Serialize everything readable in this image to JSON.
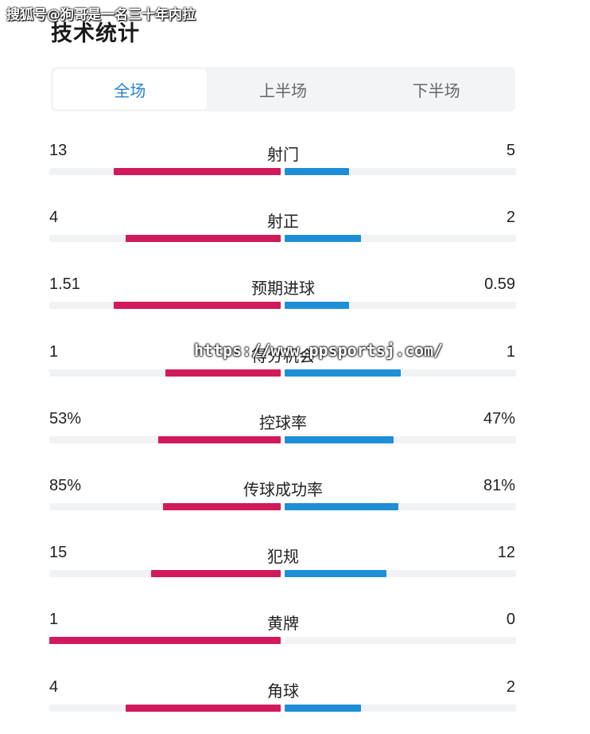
{
  "watermark_top": "搜狐号@狗哥是一名三十年内拉",
  "watermark_mid": "https://www.ppsportsj.com/",
  "title": "技术统计",
  "tabs": [
    {
      "label": "全场",
      "active": true
    },
    {
      "label": "上半场",
      "active": false
    },
    {
      "label": "下半场",
      "active": false
    }
  ],
  "colors": {
    "home": "#d11a5c",
    "away": "#1e8fd6",
    "active_tab": "#1f84cf"
  },
  "stats": [
    {
      "name": "射门",
      "home": "13",
      "away": "5",
      "home_fraction": 0.72,
      "away_fraction": 0.28
    },
    {
      "name": "射正",
      "home": "4",
      "away": "2",
      "home_fraction": 0.67,
      "away_fraction": 0.33
    },
    {
      "name": "预期进球",
      "home": "1.51",
      "away": "0.59",
      "home_fraction": 0.72,
      "away_fraction": 0.28
    },
    {
      "name": "得分机会",
      "home": "1",
      "away": "1",
      "home_fraction": 0.5,
      "away_fraction": 0.5
    },
    {
      "name": "控球率",
      "home": "53%",
      "away": "47%",
      "home_fraction": 0.53,
      "away_fraction": 0.47
    },
    {
      "name": "传球成功率",
      "home": "85%",
      "away": "81%",
      "home_fraction": 0.51,
      "away_fraction": 0.49
    },
    {
      "name": "犯规",
      "home": "15",
      "away": "12",
      "home_fraction": 0.56,
      "away_fraction": 0.44
    },
    {
      "name": "黄牌",
      "home": "1",
      "away": "0",
      "home_fraction": 1.0,
      "away_fraction": 0.0
    },
    {
      "name": "角球",
      "home": "4",
      "away": "2",
      "home_fraction": 0.67,
      "away_fraction": 0.33
    }
  ]
}
